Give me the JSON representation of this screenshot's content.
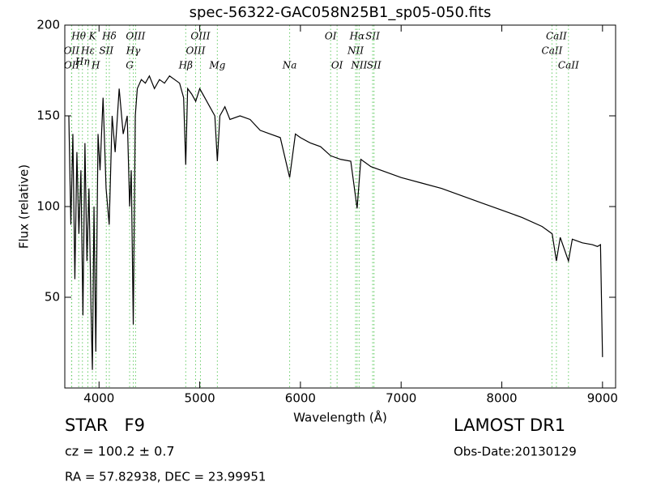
{
  "chart_data": {
    "type": "line",
    "title": "spec-56322-GAC058N25B1_sp05-050.fits",
    "x_label": "Wavelength (Å)",
    "y_label": "Flux (relative)",
    "xlim": [
      3660,
      9130
    ],
    "ylim": [
      0,
      200
    ],
    "xticks": [
      4000,
      5000,
      6000,
      7000,
      8000,
      9000
    ],
    "yticks": [
      50,
      100,
      150,
      200
    ],
    "x": [
      3700,
      3720,
      3740,
      3760,
      3780,
      3800,
      3820,
      3840,
      3860,
      3880,
      3900,
      3920,
      3934,
      3950,
      3968,
      3990,
      4010,
      4040,
      4070,
      4101,
      4130,
      4160,
      4200,
      4240,
      4280,
      4304,
      4320,
      4340,
      4360,
      4380,
      4420,
      4460,
      4500,
      4550,
      4600,
      4650,
      4700,
      4750,
      4800,
      4840,
      4861,
      4880,
      4920,
      4960,
      5000,
      5050,
      5100,
      5150,
      5175,
      5200,
      5250,
      5300,
      5400,
      5500,
      5600,
      5700,
      5800,
      5893,
      5950,
      6000,
      6100,
      6200,
      6300,
      6400,
      6500,
      6563,
      6600,
      6700,
      6800,
      6900,
      7000,
      7200,
      7400,
      7600,
      7800,
      8000,
      8200,
      8400,
      8500,
      8542,
      8580,
      8662,
      8700,
      8800,
      8900,
      8950,
      8980,
      9000
    ],
    "series": [
      {
        "color": "#000000",
        "values": [
          150,
          90,
          140,
          60,
          130,
          85,
          120,
          40,
          135,
          70,
          110,
          45,
          10,
          100,
          20,
          140,
          120,
          160,
          110,
          90,
          150,
          130,
          165,
          140,
          150,
          100,
          120,
          35,
          150,
          165,
          170,
          168,
          172,
          165,
          170,
          168,
          172,
          170,
          168,
          160,
          123,
          165,
          162,
          158,
          165,
          160,
          155,
          150,
          125,
          150,
          155,
          148,
          150,
          148,
          142,
          140,
          138,
          116,
          140,
          138,
          135,
          133,
          128,
          126,
          125,
          99,
          126,
          122,
          120,
          118,
          116,
          113,
          110,
          106,
          102,
          98,
          94,
          89,
          85,
          70,
          83,
          70,
          82,
          80,
          79,
          78,
          79,
          17
        ]
      }
    ],
    "line_marker_color": "#66cc66",
    "spectral_lines": [
      {
        "label": "OII",
        "wavelength": 3727
      },
      {
        "label": "OII",
        "wavelength": 3729
      },
      {
        "label": "Hθ",
        "wavelength": 3798
      },
      {
        "label": "Hη",
        "wavelength": 3835
      },
      {
        "label": "Hε",
        "wavelength": 3889
      },
      {
        "label": "K",
        "wavelength": 3934
      },
      {
        "label": "H",
        "wavelength": 3968
      },
      {
        "label": "SII",
        "wavelength": 4072
      },
      {
        "label": "Hδ",
        "wavelength": 4102
      },
      {
        "label": "G",
        "wavelength": 4304
      },
      {
        "label": "Hγ",
        "wavelength": 4340
      },
      {
        "label": "OIII",
        "wavelength": 4363
      },
      {
        "label": "Hβ",
        "wavelength": 4861
      },
      {
        "label": "OIII",
        "wavelength": 4959
      },
      {
        "label": "OIII",
        "wavelength": 5007
      },
      {
        "label": "Mg",
        "wavelength": 5175
      },
      {
        "label": "Na",
        "wavelength": 5893
      },
      {
        "label": "OI",
        "wavelength": 6300
      },
      {
        "label": "OI",
        "wavelength": 6364
      },
      {
        "label": "NII",
        "wavelength": 6548
      },
      {
        "label": "Hα",
        "wavelength": 6563
      },
      {
        "label": "NII",
        "wavelength": 6583
      },
      {
        "label": "SII",
        "wavelength": 6717
      },
      {
        "label": "SII",
        "wavelength": 6731
      },
      {
        "label": "CaII",
        "wavelength": 8498
      },
      {
        "label": "CaII",
        "wavelength": 8542
      },
      {
        "label": "CaII",
        "wavelength": 8662
      }
    ],
    "info": {
      "class": "STAR   F9",
      "survey": "LAMOST DR1",
      "redshift": "cz = 100.2 ± 0.7",
      "obs_date": "Obs-Date:20130129",
      "coords": "RA = 57.82938, DEC = 23.99951"
    }
  }
}
